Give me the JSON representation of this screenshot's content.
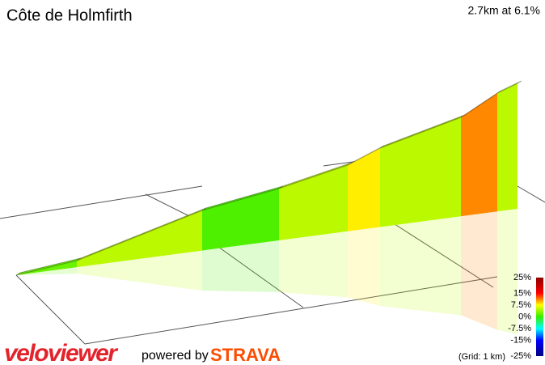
{
  "chart_data": {
    "type": "profile",
    "title": "Côte de Holmfirth",
    "subtitle": "2.7km at 6.1%",
    "segments": [
      2,
      5,
      1,
      5,
      8,
      5,
      11,
      5
    ],
    "scale_ticks": [
      {
        "value": 25,
        "label": "25%"
      },
      {
        "value": 15,
        "label": "15%"
      },
      {
        "value": 7.5,
        "label": "7.5%"
      },
      {
        "value": 0,
        "label": "0%"
      },
      {
        "value": -7.5,
        "label": "-7.5%"
      },
      {
        "value": -15,
        "label": "-15%"
      },
      {
        "value": -25,
        "label": "-25%"
      }
    ],
    "scale_colors": [
      "#8b0000",
      "#ff0000",
      "#ffff00",
      "#33ee00",
      "#00ffff",
      "#0000ff",
      "#000080"
    ],
    "grid_note": "(Grid: 1 km)",
    "brand": "veloviewer",
    "powered": "powered by",
    "strava": "STRAVA"
  }
}
